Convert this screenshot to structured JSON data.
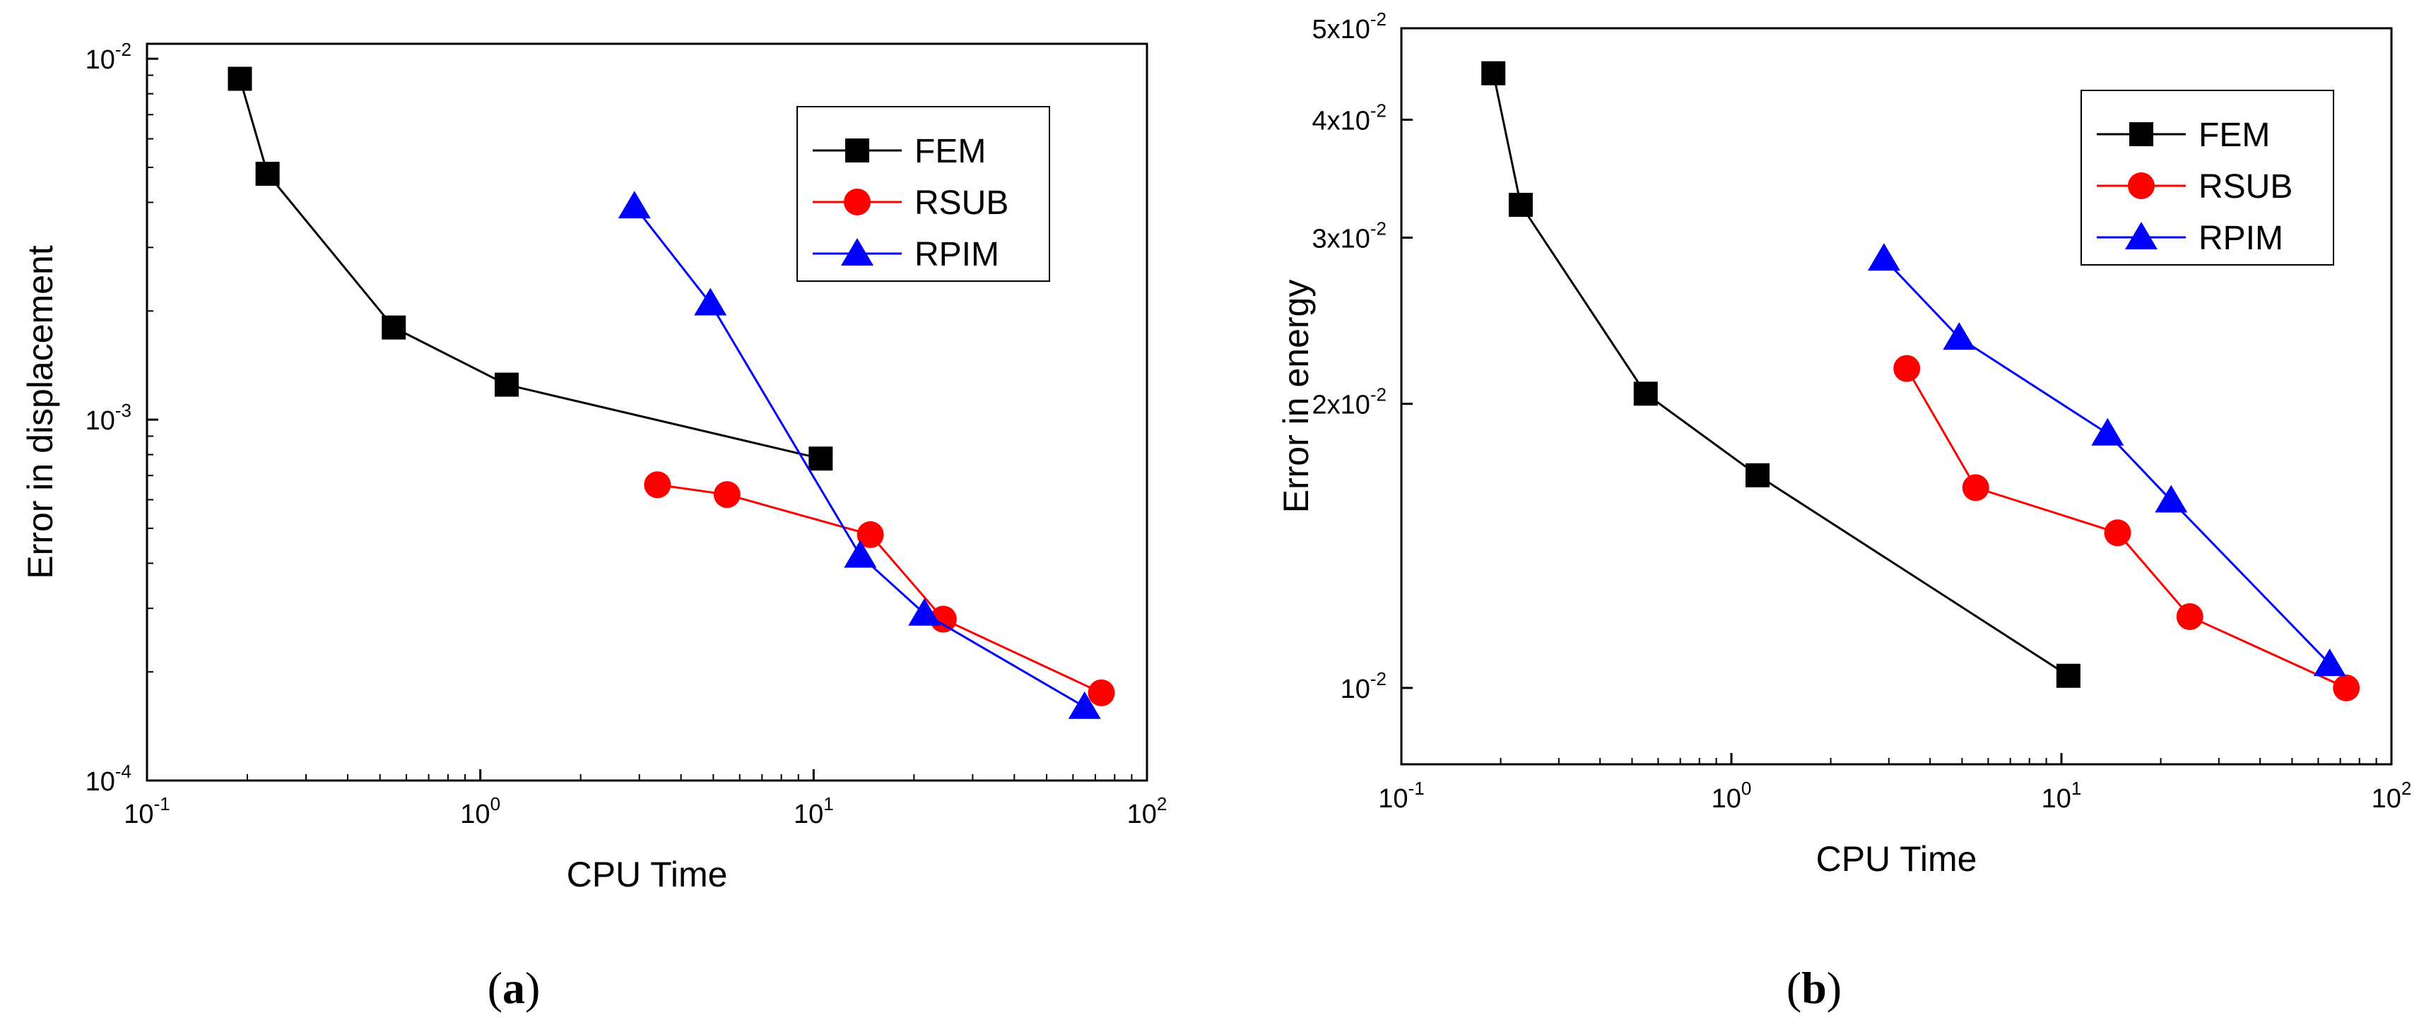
{
  "chart_data": [
    {
      "type": "line",
      "panel": "a",
      "caption": "a",
      "x_scale": "log",
      "y_scale": "log",
      "xlabel": "CPU Time",
      "ylabel": "Error in displacement",
      "xlim": [
        0.1,
        100
      ],
      "ylim": [
        0.0001,
        0.011
      ],
      "x_ticks": [
        {
          "value": 0.1,
          "base": "10",
          "exp": "-1"
        },
        {
          "value": 1,
          "base": "10",
          "exp": "0"
        },
        {
          "value": 10,
          "base": "10",
          "exp": "1"
        },
        {
          "value": 100,
          "base": "10",
          "exp": "2"
        }
      ],
      "y_ticks": [
        {
          "value": 0.0001,
          "base": "10",
          "exp": "-4"
        },
        {
          "value": 0.001,
          "base": "10",
          "exp": "-3"
        },
        {
          "value": 0.01,
          "base": "10",
          "exp": "-2"
        }
      ],
      "legend_position": "top-right",
      "series": [
        {
          "name": "FEM",
          "marker": "square",
          "color": "#000000",
          "x": [
            0.19,
            0.23,
            0.55,
            1.2,
            10.5
          ],
          "y": [
            0.0088,
            0.0048,
            0.0018,
            0.00125,
            0.00078
          ]
        },
        {
          "name": "RSUB",
          "marker": "circle",
          "color": "#ff0000",
          "x": [
            3.4,
            5.5,
            14.8,
            24.5,
            73
          ],
          "y": [
            0.00066,
            0.00062,
            0.00048,
            0.00028,
            0.000175
          ]
        },
        {
          "name": "RPIM",
          "marker": "triangle",
          "color": "#0000ff",
          "x": [
            2.9,
            4.9,
            13.8,
            21.5,
            65
          ],
          "y": [
            0.0039,
            0.0021,
            0.00042,
            0.00029,
            0.00016
          ]
        }
      ]
    },
    {
      "type": "line",
      "panel": "b",
      "caption": "b",
      "x_scale": "log",
      "y_scale": "log",
      "xlabel": "CPU Time",
      "ylabel": "Error in energy",
      "xlim": [
        0.1,
        100
      ],
      "ylim": [
        0.0083,
        0.05
      ],
      "x_ticks": [
        {
          "value": 0.1,
          "base": "10",
          "exp": "-1"
        },
        {
          "value": 1,
          "base": "10",
          "exp": "0"
        },
        {
          "value": 10,
          "base": "10",
          "exp": "1"
        },
        {
          "value": 100,
          "base": "10",
          "exp": "2"
        }
      ],
      "y_ticks": [
        {
          "value": 0.01,
          "base": "10",
          "exp": "-2"
        },
        {
          "value": 0.02,
          "base": "2x10",
          "exp": "-2"
        },
        {
          "value": 0.03,
          "base": "3x10",
          "exp": "-2"
        },
        {
          "value": 0.04,
          "base": "4x10",
          "exp": "-2"
        },
        {
          "value": 0.05,
          "base": "5x10",
          "exp": "-2"
        }
      ],
      "legend_position": "top-right",
      "series": [
        {
          "name": "FEM",
          "marker": "square",
          "color": "#000000",
          "x": [
            0.19,
            0.23,
            0.55,
            1.2,
            10.5
          ],
          "y": [
            0.0448,
            0.0325,
            0.0205,
            0.0168,
            0.0103
          ]
        },
        {
          "name": "RSUB",
          "marker": "circle",
          "color": "#ff0000",
          "x": [
            3.4,
            5.5,
            14.8,
            24.5,
            73
          ],
          "y": [
            0.0218,
            0.0163,
            0.0146,
            0.0119,
            0.01
          ]
        },
        {
          "name": "RPIM",
          "marker": "triangle",
          "color": "#0000ff",
          "x": [
            2.9,
            4.9,
            13.8,
            21.5,
            65
          ],
          "y": [
            0.0285,
            0.0235,
            0.0186,
            0.0158,
            0.0106
          ]
        }
      ]
    }
  ]
}
